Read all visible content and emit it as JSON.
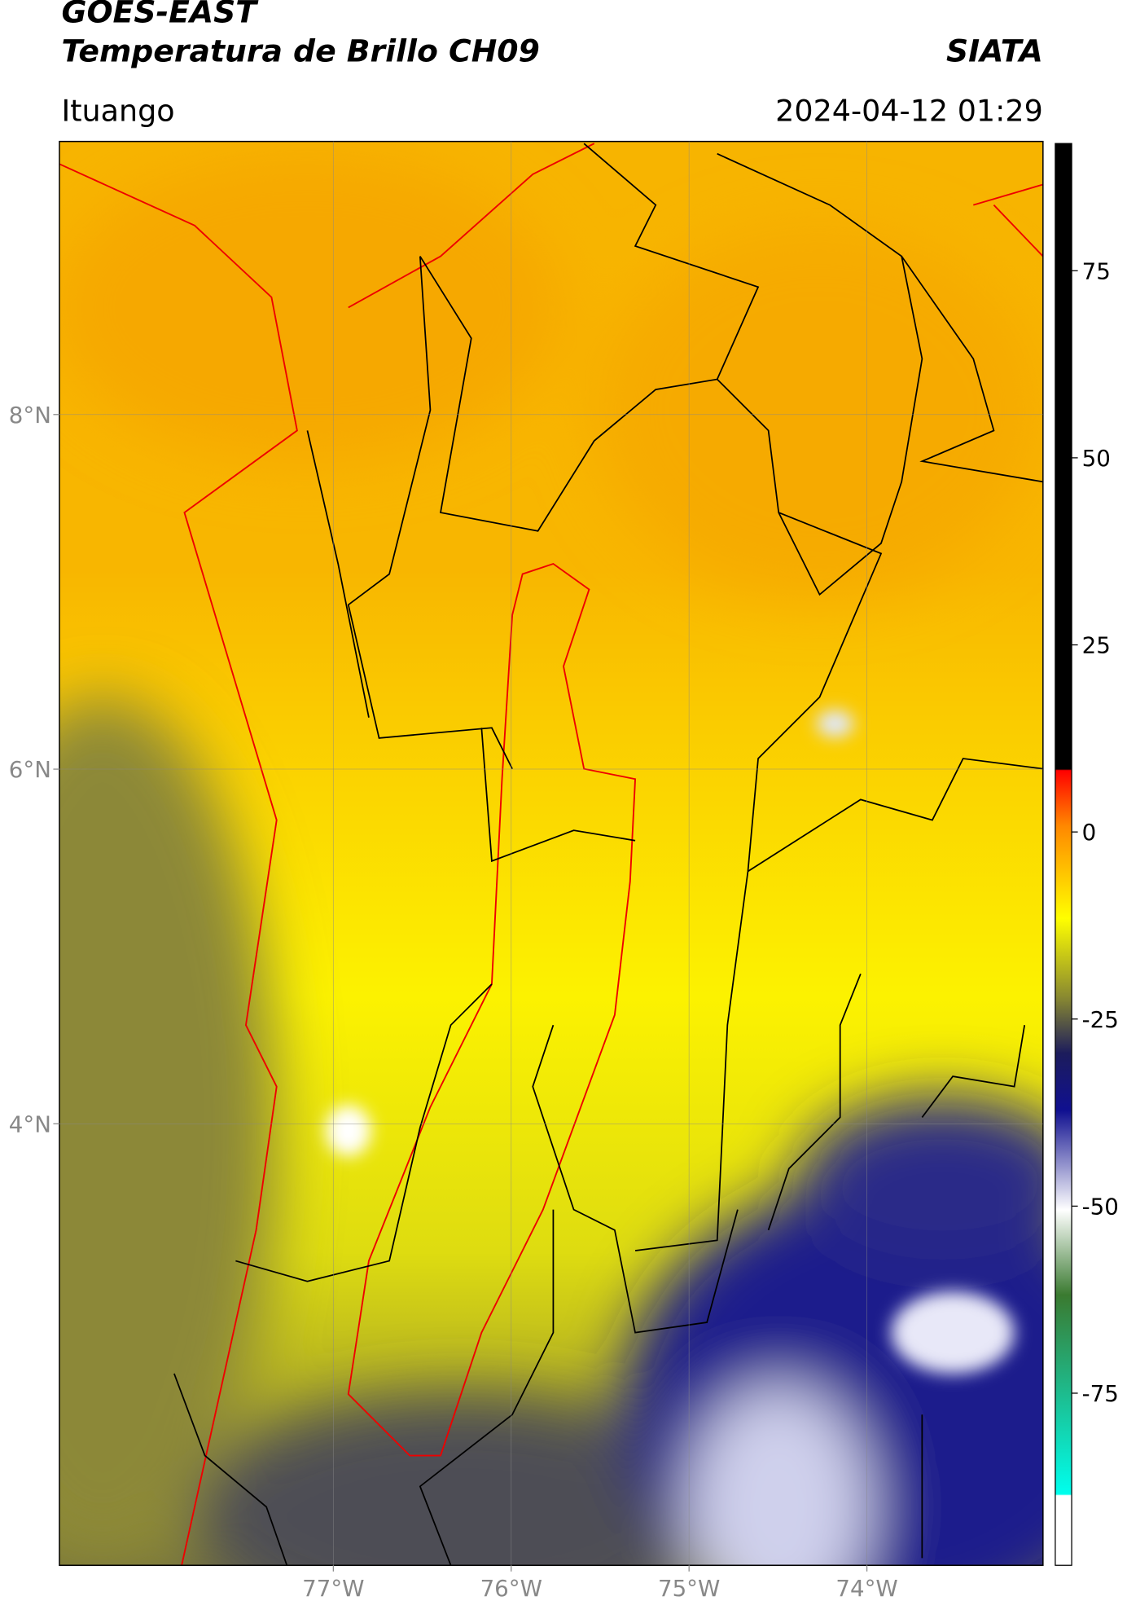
{
  "header": {
    "title": "GOES-EAST",
    "subtitle": "Temperatura de Brillo CH09",
    "organization": "SIATA",
    "location": "Ituango",
    "datetime": "2024-04-12 01:29"
  },
  "map": {
    "xlim": [
      -78.54,
      -73.01
    ],
    "ylim": [
      1.51,
      9.54
    ],
    "xticks": [
      {
        "value": -77,
        "label": "77°W"
      },
      {
        "value": -76,
        "label": "76°W"
      },
      {
        "value": -75,
        "label": "75°W"
      },
      {
        "value": -74,
        "label": "74°W"
      }
    ],
    "yticks": [
      {
        "value": 8,
        "label": "8°N"
      },
      {
        "value": 6,
        "label": "6°N"
      },
      {
        "value": 4,
        "label": "4°N"
      }
    ]
  },
  "colorbar": {
    "lim": [
      -98,
      92
    ],
    "ticks": [
      75,
      50,
      25,
      0,
      -25,
      -50,
      -75
    ]
  }
}
